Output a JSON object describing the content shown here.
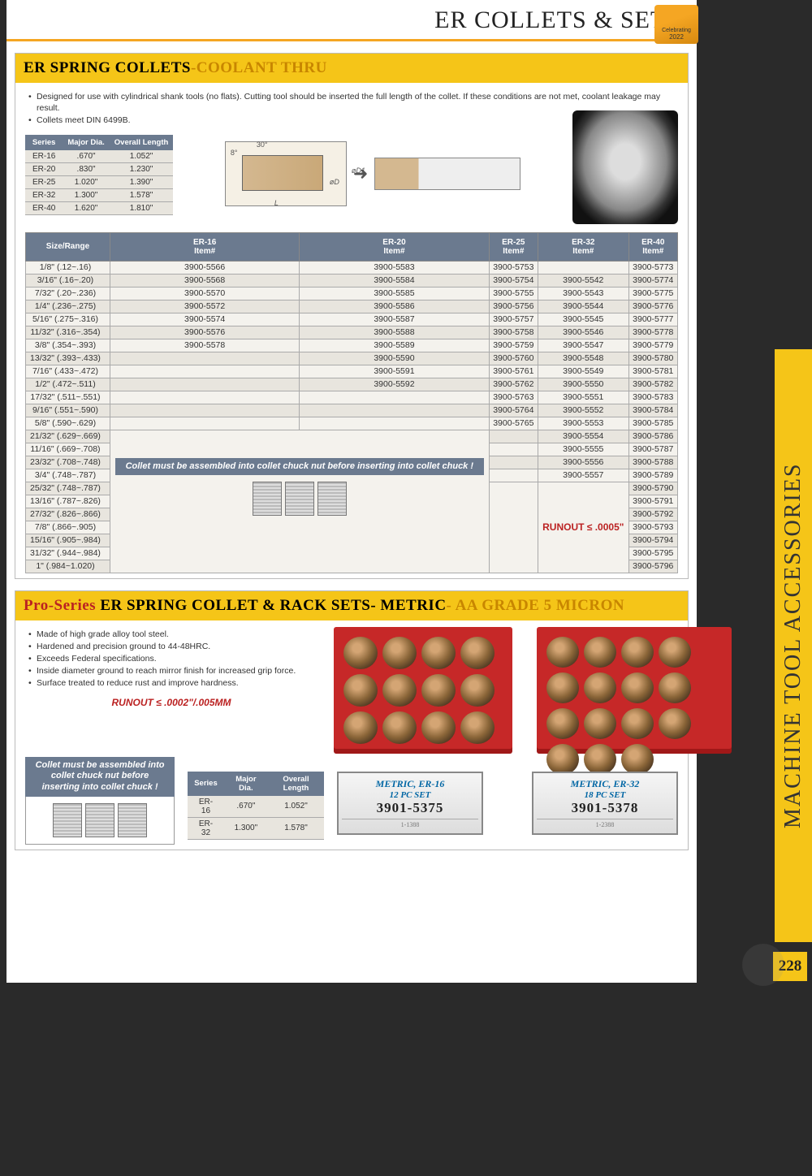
{
  "page_title": "ER COLLETS & SETS",
  "badge_year": "2022",
  "side_tab": "MACHINE TOOL ACCESSORIES",
  "page_num": "228",
  "sect1": {
    "t1": "ER SPRING COLLETS",
    "t2": "-COOLANT THRU",
    "bullets": [
      "Designed for use with cylindrical shank tools (no flats). Cutting tool should be inserted the full length of the collet. If these conditions are not met, coolant leakage may result.",
      "Collets meet DIN 6499B."
    ],
    "spec_cols": [
      "Series",
      "Major Dia.",
      "Overall Length"
    ],
    "spec_rows": [
      [
        "ER-16",
        ".670\"",
        "1.052\""
      ],
      [
        "ER-20",
        ".830\"",
        "1.230\""
      ],
      [
        "ER-25",
        "1.020\"",
        "1.390\""
      ],
      [
        "ER-32",
        "1.300\"",
        "1.578\""
      ],
      [
        "ER-40",
        "1.620\"",
        "1.810\""
      ]
    ],
    "big_cols": [
      "Size/Range",
      "ER-16 Item#",
      "ER-20 Item#",
      "ER-25 Item#",
      "ER-32 Item#",
      "ER-40 Item#"
    ],
    "big_rows": [
      [
        "1/8\" (.12~.16)",
        "3900-5566",
        "3900-5583",
        "3900-5753",
        "",
        "3900-5773"
      ],
      [
        "3/16\" (.16~.20)",
        "3900-5568",
        "3900-5584",
        "3900-5754",
        "3900-5542",
        "3900-5774"
      ],
      [
        "7/32\" (.20~.236)",
        "3900-5570",
        "3900-5585",
        "3900-5755",
        "3900-5543",
        "3900-5775"
      ],
      [
        "1/4\" (.236~.275)",
        "3900-5572",
        "3900-5586",
        "3900-5756",
        "3900-5544",
        "3900-5776"
      ],
      [
        "5/16\" (.275~.316)",
        "3900-5574",
        "3900-5587",
        "3900-5757",
        "3900-5545",
        "3900-5777"
      ],
      [
        "11/32\" (.316~.354)",
        "3900-5576",
        "3900-5588",
        "3900-5758",
        "3900-5546",
        "3900-5778"
      ],
      [
        "3/8\" (.354~.393)",
        "3900-5578",
        "3900-5589",
        "3900-5759",
        "3900-5547",
        "3900-5779"
      ],
      [
        "13/32\" (.393~.433)",
        "",
        "3900-5590",
        "3900-5760",
        "3900-5548",
        "3900-5780"
      ],
      [
        "7/16\" (.433~.472)",
        "",
        "3900-5591",
        "3900-5761",
        "3900-5549",
        "3900-5781"
      ],
      [
        "1/2\" (.472~.511)",
        "",
        "3900-5592",
        "3900-5762",
        "3900-5550",
        "3900-5782"
      ],
      [
        "17/32\" (.511~.551)",
        "",
        "",
        "3900-5763",
        "3900-5551",
        "3900-5783"
      ],
      [
        "9/16\" (.551~.590)",
        "",
        "",
        "3900-5764",
        "3900-5552",
        "3900-5784"
      ],
      [
        "5/8\" (.590~.629)",
        "",
        "",
        "3900-5765",
        "3900-5553",
        "3900-5785"
      ],
      [
        "21/32\" (.629~.669)",
        "",
        "",
        "",
        "3900-5554",
        "3900-5786"
      ],
      [
        "11/16\" (.669~.708)",
        "",
        "",
        "",
        "3900-5555",
        "3900-5787"
      ],
      [
        "23/32\" (.708~.748)",
        "",
        "",
        "",
        "3900-5556",
        "3900-5788"
      ],
      [
        "3/4\" (.748~.787)",
        "",
        "",
        "",
        "3900-5557",
        "3900-5789"
      ],
      [
        "25/32\" (.748~.787)",
        "",
        "",
        "",
        "",
        "3900-5790"
      ],
      [
        "13/16\" (.787~.826)",
        "",
        "",
        "",
        "",
        "3900-5791"
      ],
      [
        "27/32\" (.826~.866)",
        "",
        "",
        "",
        "",
        "3900-5792"
      ],
      [
        "7/8\" (.866~.905)",
        "",
        "",
        "",
        "",
        "3900-5793"
      ],
      [
        "15/16\" (.905~.984)",
        "",
        "",
        "",
        "",
        "3900-5794"
      ],
      [
        "31/32\" (.944~.984)",
        "",
        "",
        "",
        "",
        "3900-5795"
      ],
      [
        "1\" (.984~1.020)",
        "",
        "",
        "",
        "",
        "3900-5796"
      ]
    ],
    "note": "Collet must be assembled into collet chuck nut before inserting into collet chuck !",
    "runout": "RUNOUT ≤ .0005\""
  },
  "sect2": {
    "t1": "Pro-Series ",
    "t2": "ER SPRING COLLET & RACK SETS- METRIC",
    "t3": "- AA GRADE 5 MICRON",
    "bullets": [
      "Made of high grade alloy tool steel.",
      "Hardened and precision ground to 44-48HRC.",
      "Exceeds Federal specifications.",
      "Inside diameter ground to reach mirror finish for increased grip force.",
      "Surface treated to reduce rust and improve hardness."
    ],
    "runout": "RUNOUT ≤ .0002\"/.005MM",
    "note": "Collet must be assembled into collet chuck nut before inserting into collet chuck !",
    "spec_cols": [
      "Series",
      "Major Dia.",
      "Overall Length"
    ],
    "spec_rows": [
      [
        "ER-16",
        ".670\"",
        "1.052\""
      ],
      [
        "ER-32",
        "1.300\"",
        "1.578\""
      ]
    ],
    "box1": {
      "l1": "METRIC, ER-16",
      "l2": "12 PC SET",
      "l3": "3901-5375"
    },
    "box2": {
      "l1": "METRIC, ER-32",
      "l2": "18 PC SET",
      "l3": "3901-5378"
    }
  }
}
